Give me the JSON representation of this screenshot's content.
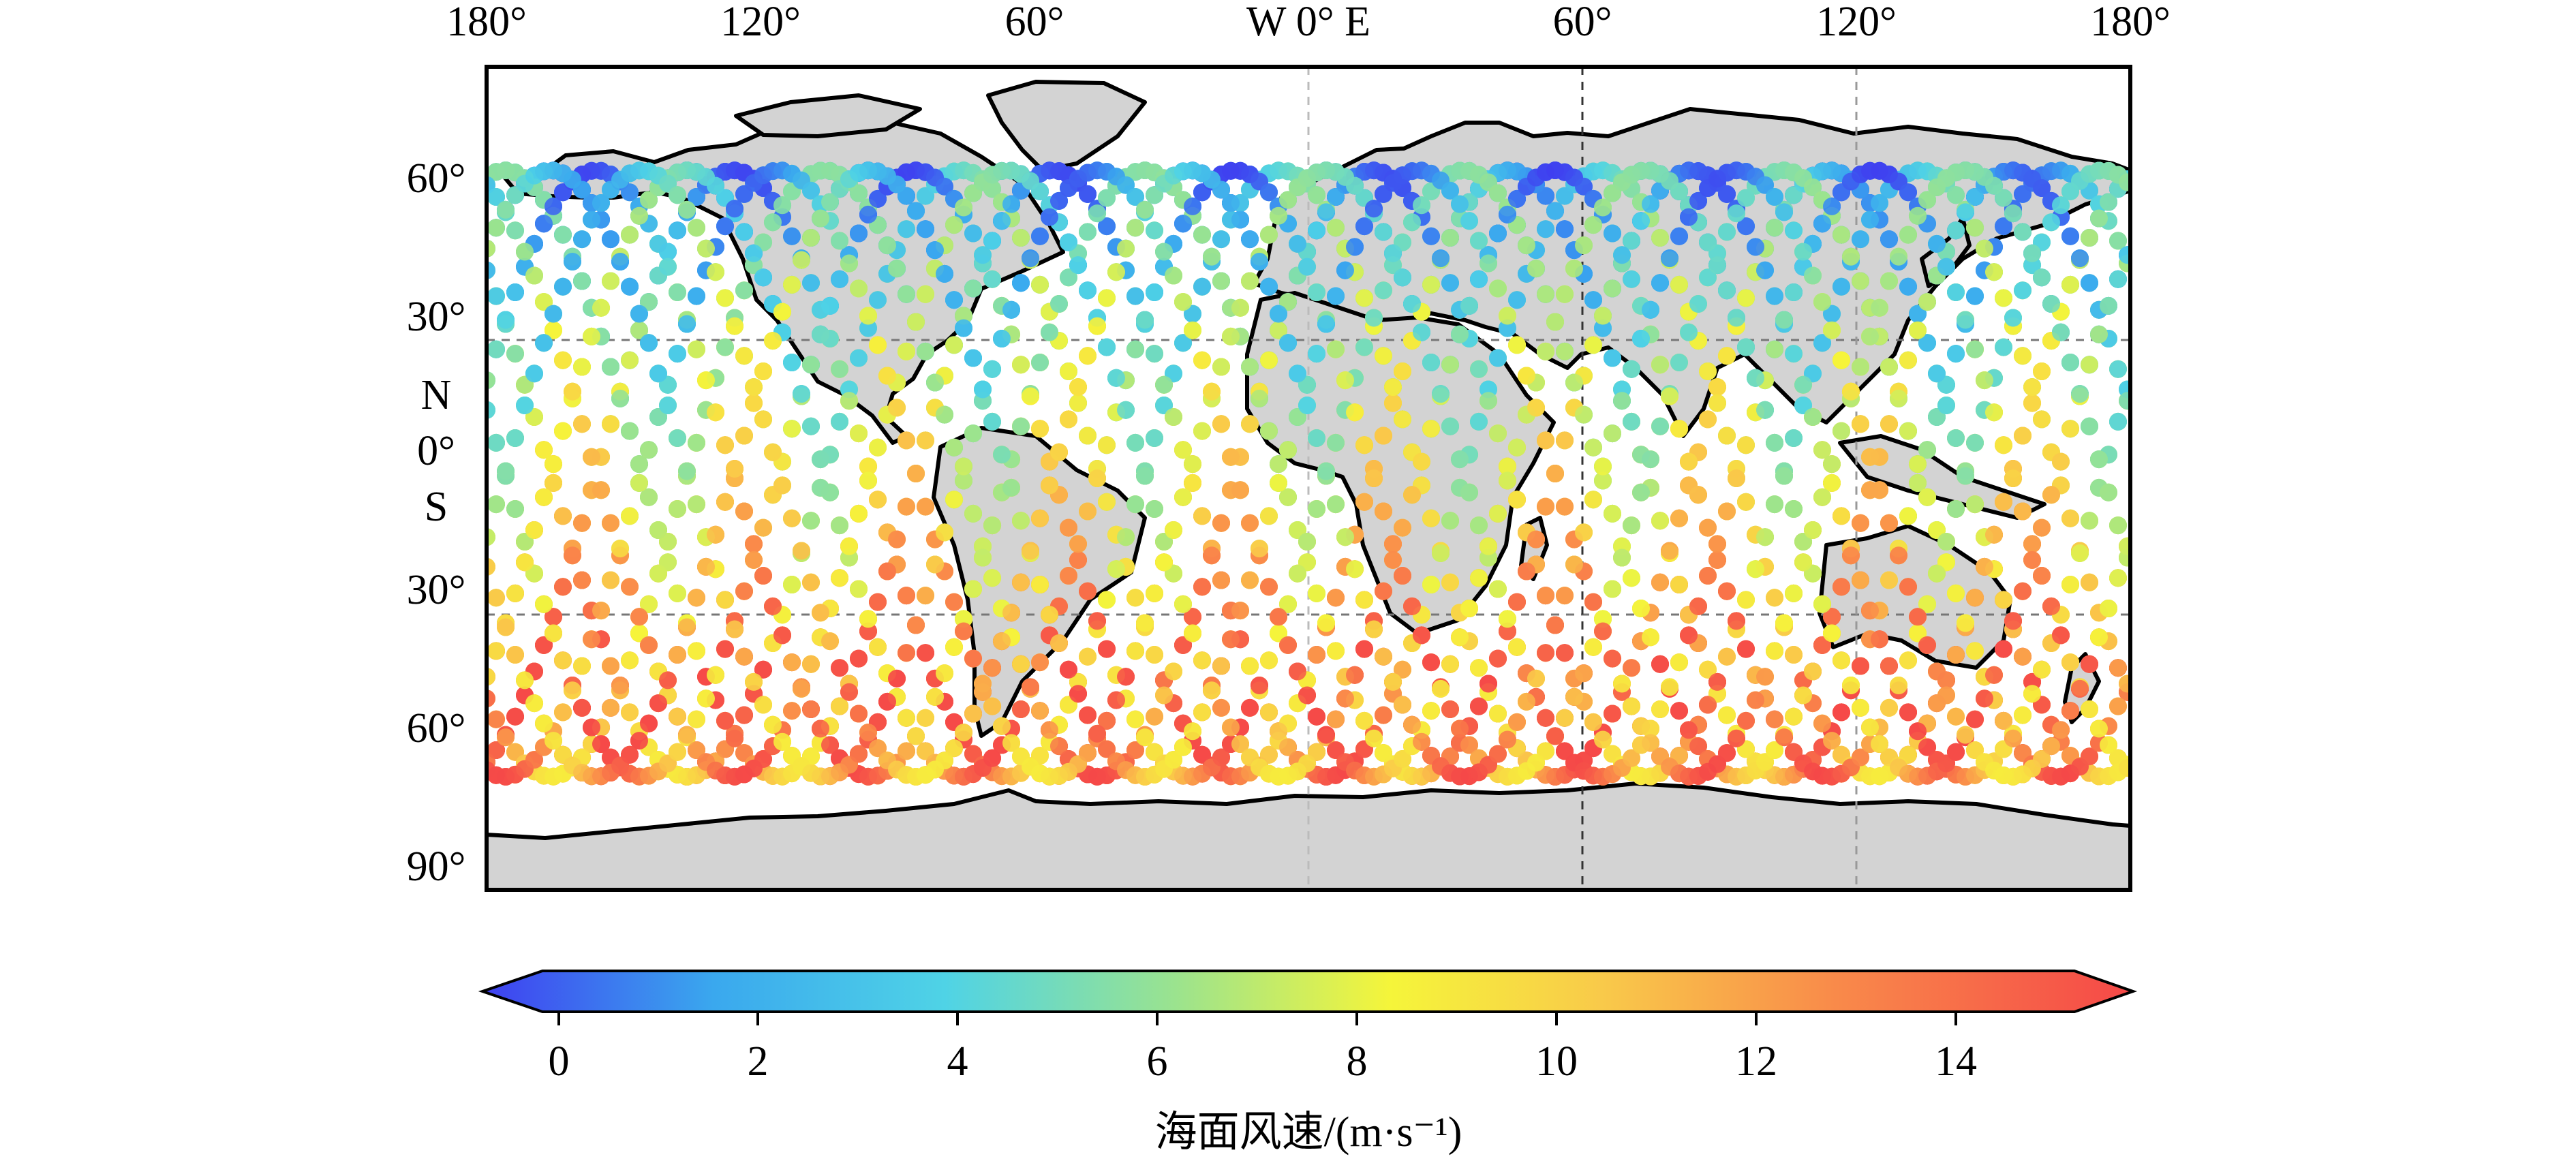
{
  "map": {
    "top_axis_labels": [
      "180°",
      "120°",
      "60°",
      "W 0° E",
      "60°",
      "120°",
      "180°"
    ],
    "left_axis_labels": [
      "60°",
      "30°",
      "N",
      "0°",
      "S",
      "30°",
      "60°",
      "90°"
    ],
    "ocean_color": "#ffffff",
    "land_color": "#d3d3d3",
    "coast_color": "#000000",
    "gridlines": "dashed"
  },
  "colorbar": {
    "ticks": [
      "0",
      "2",
      "4",
      "6",
      "8",
      "10",
      "12",
      "14"
    ],
    "min": 0,
    "max": 15,
    "extend": "both",
    "colormap": [
      "#3f3ff0",
      "#3aa8ee",
      "#4fd3e6",
      "#9be38e",
      "#f5f53a",
      "#f9c94a",
      "#f98a4a",
      "#f54848"
    ],
    "label": "海面风速/(m·s⁻¹)"
  }
}
